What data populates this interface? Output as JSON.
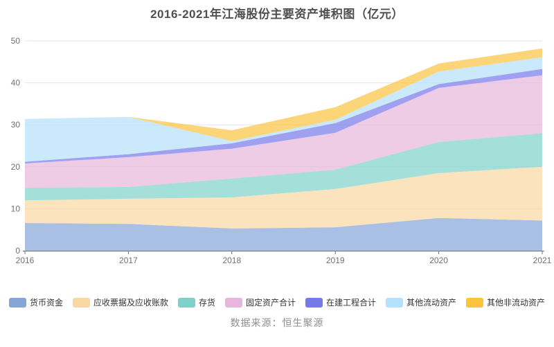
{
  "title": "2016-2021年江海股份主要资产堆积图（亿元）",
  "source": "数据来源：恒生聚源",
  "colors": {
    "title_text": "#4f4f4f",
    "axis_label": "#6e7079",
    "axis_line": "#6e7079",
    "grid_line": "#e2e6f0",
    "legend_text": "#333333",
    "source_text": "#8f8f8f",
    "background": "#ffffff"
  },
  "chart_data": {
    "type": "area",
    "stacked": true,
    "title": "2016-2021年江海股份主要资产堆积图（亿元）",
    "xlabel": "",
    "ylabel": "",
    "x": [
      "2016",
      "2017",
      "2018",
      "2019",
      "2020",
      "2021"
    ],
    "ylim": [
      0,
      50
    ],
    "yticks": [
      0,
      10,
      20,
      30,
      40,
      50
    ],
    "grid": true,
    "legend_position": "bottom",
    "area_opacity": 0.7,
    "series": [
      {
        "id": "monetary-funds",
        "name": "货币资金",
        "color": "#85a5d8",
        "values": [
          6.6,
          6.4,
          5.3,
          5.6,
          7.8,
          7.2
        ]
      },
      {
        "id": "notes-accounts-receivable",
        "name": "应收票据及应收账款",
        "color": "#fad8a1",
        "values": [
          5.4,
          6.0,
          7.4,
          9.1,
          10.7,
          12.8
        ]
      },
      {
        "id": "inventory",
        "name": "存货",
        "color": "#7dd1c9",
        "values": [
          3.0,
          2.8,
          4.5,
          4.6,
          7.4,
          8.0
        ]
      },
      {
        "id": "fixed-assets-total",
        "name": "固定资产合计",
        "color": "#e7b6dc",
        "values": [
          5.8,
          7.1,
          7.1,
          8.8,
          12.9,
          13.8
        ]
      },
      {
        "id": "construction-in-progress",
        "name": "在建工程合计",
        "color": "#7679ea",
        "values": [
          0.4,
          0.7,
          1.3,
          2.3,
          0.9,
          1.5
        ]
      },
      {
        "id": "other-current-assets",
        "name": "其他流动资产",
        "color": "#b4e1fb",
        "values": [
          10.2,
          8.9,
          0.5,
          0.8,
          3.0,
          2.8
        ]
      },
      {
        "id": "other-non-current-assets",
        "name": "其他非流动资产",
        "color": "#fbc33e",
        "values": [
          0.0,
          0.0,
          2.6,
          3.0,
          1.9,
          2.1
        ]
      }
    ]
  }
}
